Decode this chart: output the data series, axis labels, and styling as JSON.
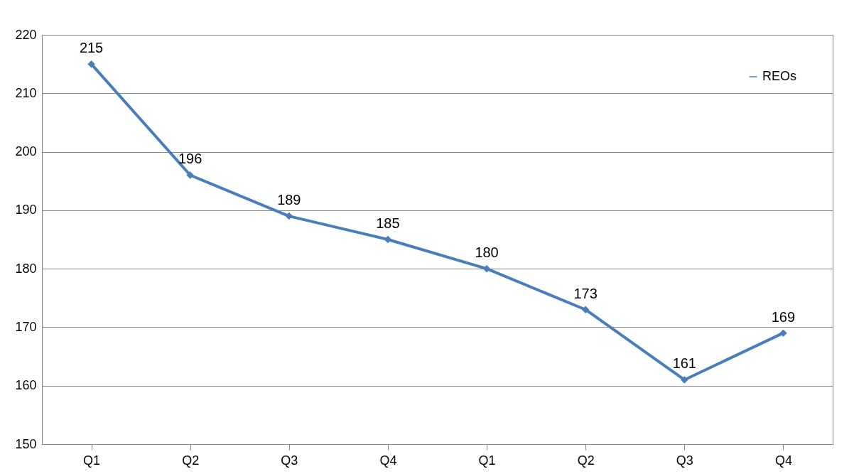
{
  "chart_data": {
    "type": "line",
    "categories": [
      "Q1",
      "Q2",
      "Q3",
      "Q4",
      "Q1",
      "Q2",
      "Q3",
      "Q4"
    ],
    "series": [
      {
        "name": "REOs",
        "color": "#4a7ebb",
        "values": [
          215,
          196,
          189,
          185,
          180,
          173,
          161,
          169
        ]
      }
    ],
    "ylim": [
      150,
      220
    ],
    "yticks": [
      150,
      160,
      170,
      180,
      190,
      200,
      210,
      220
    ],
    "grid": "y",
    "legend": "top right",
    "marker": "diamond",
    "line_style": "solid",
    "data_labels": true
  }
}
